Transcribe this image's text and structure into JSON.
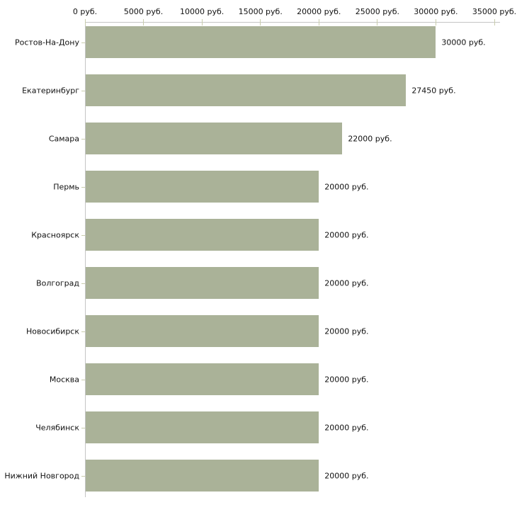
{
  "chart_data": {
    "type": "bar",
    "orientation": "horizontal",
    "xlim": [
      0,
      35000
    ],
    "x_tick_values": [
      0,
      5000,
      10000,
      15000,
      20000,
      25000,
      30000,
      35000
    ],
    "x_tick_labels": [
      "0 руб.",
      "5000 руб.",
      "10000 руб.",
      "15000 руб.",
      "20000 руб.",
      "25000 руб.",
      "30000 руб.",
      "35000 руб."
    ],
    "categories": [
      "Ростов-На-Дону",
      "Екатеринбург",
      "Самара",
      "Пермь",
      "Красноярск",
      "Волгоград",
      "Новосибирск",
      "Москва",
      "Челябинск",
      "Нижний Новгород"
    ],
    "values": [
      30000,
      27450,
      22000,
      20000,
      20000,
      20000,
      20000,
      20000,
      20000,
      20000
    ],
    "value_labels": [
      "30000 руб.",
      "27450 руб.",
      "22000 руб.",
      "20000 руб.",
      "20000 руб.",
      "20000 руб.",
      "20000 руб.",
      "20000 руб.",
      "20000 руб.",
      "20000 руб."
    ],
    "unit": "руб.",
    "grid": false,
    "legend": false,
    "colors": {
      "bar": "#aab298",
      "axis_line": "#c4c4c4",
      "tick_mark": "#c9cdad",
      "text": "#111111"
    }
  }
}
